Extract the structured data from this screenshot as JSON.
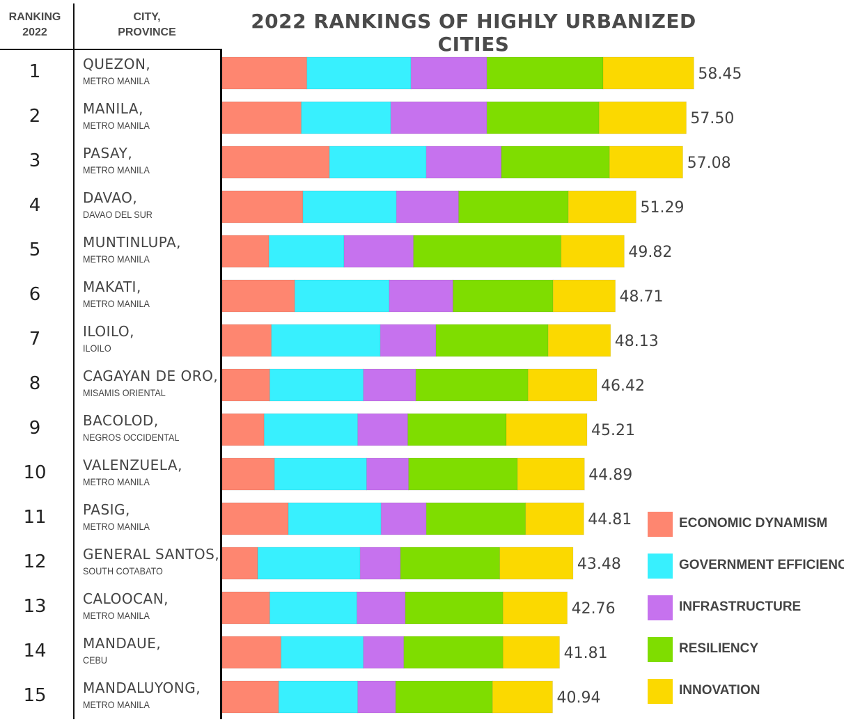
{
  "header": {
    "ranking_label": "RANKING",
    "ranking_year": "2022",
    "city_label": "CITY,",
    "province_label": "PROVINCE"
  },
  "chart_data": {
    "type": "bar",
    "orientation": "horizontal",
    "stacked": true,
    "title": "2022 RANKINGS OF HIGHLY URBANIZED CITIES",
    "xlabel": "",
    "ylabel": "",
    "legend_position": "bottom-right",
    "grid": false,
    "rows": [
      {
        "rank": "1",
        "city": "QUEZON,",
        "province": "METRO MANILA",
        "total": "58.45",
        "values": [
          10.5,
          12.9,
          9.4,
          14.4,
          11.25
        ]
      },
      {
        "rank": "2",
        "city": "MANILA,",
        "province": "METRO MANILA",
        "total": "57.50",
        "values": [
          9.8,
          11.1,
          11.9,
          13.9,
          10.8
        ]
      },
      {
        "rank": "3",
        "city": "PASAY,",
        "province": "METRO MANILA",
        "total": "57.08",
        "values": [
          13.3,
          12.0,
          9.3,
          13.4,
          9.08
        ]
      },
      {
        "rank": "4",
        "city": "DAVAO,",
        "province": "DAVAO DEL SUR",
        "total": "51.29",
        "values": [
          10.0,
          11.6,
          7.7,
          13.6,
          8.39
        ]
      },
      {
        "rank": "5",
        "city": "MUNTINLUPA,",
        "province": "METRO MANILA",
        "total": "49.82",
        "values": [
          5.8,
          9.3,
          8.6,
          18.3,
          7.82
        ]
      },
      {
        "rank": "6",
        "city": "MAKATI,",
        "province": "METRO MANILA",
        "total": "48.71",
        "values": [
          9.0,
          11.7,
          7.9,
          12.4,
          7.71
        ]
      },
      {
        "rank": "7",
        "city": "ILOILO,",
        "province": "ILOILO",
        "total": "48.13",
        "values": [
          6.1,
          13.5,
          6.9,
          13.9,
          7.73
        ]
      },
      {
        "rank": "8",
        "city": "CAGAYAN DE ORO,",
        "province": "MISAMIS ORIENTAL",
        "total": "46.42",
        "values": [
          5.9,
          11.6,
          6.5,
          13.9,
          8.52
        ]
      },
      {
        "rank": "9",
        "city": "BACOLOD,",
        "province": "NEGROS OCCIDENTAL",
        "total": "45.21",
        "values": [
          5.2,
          11.6,
          6.2,
          12.2,
          10.01
        ]
      },
      {
        "rank": "10",
        "city": "VALENZUELA,",
        "province": "METRO MANILA",
        "total": "44.89",
        "values": [
          6.5,
          11.4,
          5.2,
          13.5,
          8.29
        ]
      },
      {
        "rank": "11",
        "city": "PASIG,",
        "province": "METRO MANILA",
        "total": "44.81",
        "values": [
          8.2,
          11.5,
          5.6,
          12.3,
          7.21
        ]
      },
      {
        "rank": "12",
        "city": "GENERAL SANTOS,",
        "province": "SOUTH COTABATO",
        "total": "43.48",
        "values": [
          4.4,
          12.7,
          5.0,
          12.3,
          9.08
        ]
      },
      {
        "rank": "13",
        "city": "CALOOCAN,",
        "province": "METRO MANILA",
        "total": "42.76",
        "values": [
          5.9,
          10.8,
          6.0,
          12.1,
          7.96
        ]
      },
      {
        "rank": "14",
        "city": "MANDAUE,",
        "province": "CEBU",
        "total": "41.81",
        "values": [
          7.3,
          10.2,
          5.0,
          12.3,
          7.01
        ]
      },
      {
        "rank": "15",
        "city": "MANDALUYONG,",
        "province": "METRO MANILA",
        "total": "40.94",
        "values": [
          7.0,
          9.8,
          4.7,
          12.0,
          7.44
        ]
      }
    ],
    "series": [
      {
        "name": "ECONOMIC DYNAMISM",
        "color": "#fe8670"
      },
      {
        "name": "GOVERNMENT EFFICIENCY",
        "color": "#38f0fe"
      },
      {
        "name": "INFRASTRUCTURE",
        "color": "#c672ee"
      },
      {
        "name": "RESILIENCY",
        "color": "#7fdd00"
      },
      {
        "name": "INNOVATION",
        "color": "#fbd900"
      }
    ]
  }
}
